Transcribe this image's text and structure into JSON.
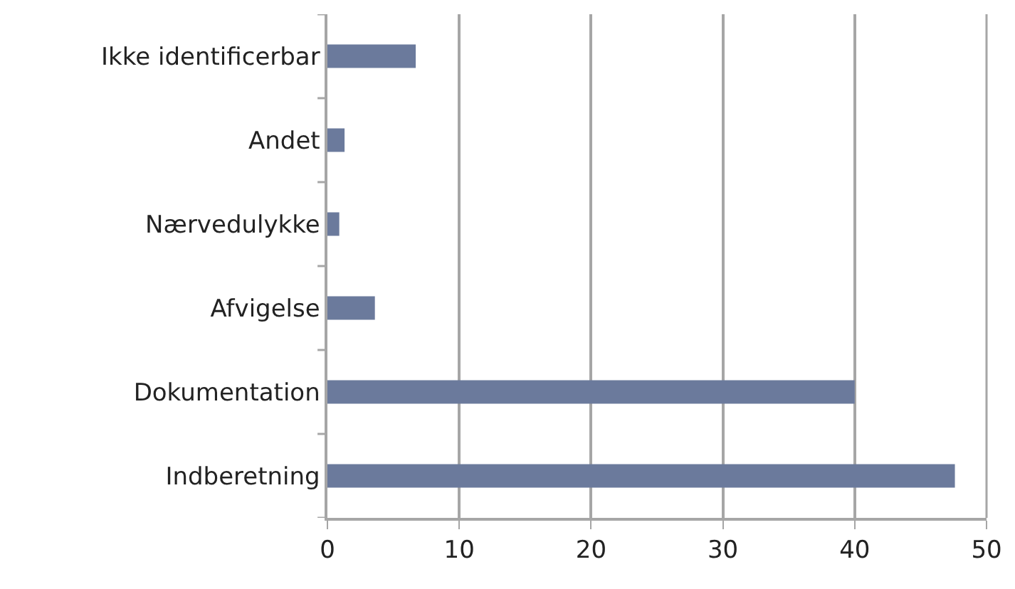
{
  "chart_data": {
    "type": "bar",
    "orientation": "horizontal",
    "categories": [
      "Ikke identificerbar",
      "Andet",
      "Nærvedulykke",
      "Afvigelse",
      "Dokumentation",
      "Indberetning"
    ],
    "values": [
      6.7,
      1.3,
      0.9,
      3.6,
      40,
      47.6
    ],
    "color": "#6b7a9c",
    "xlim": [
      0,
      50
    ],
    "xticks": [
      0,
      10,
      20,
      30,
      40,
      50
    ],
    "grid": "x"
  }
}
